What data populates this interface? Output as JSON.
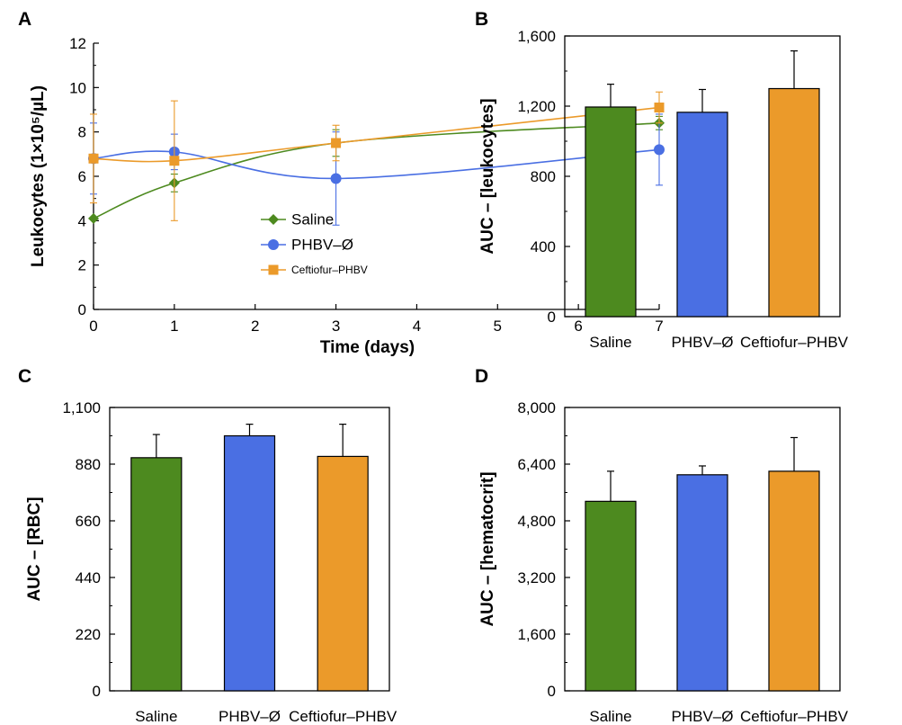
{
  "panels": [
    {
      "letter": "A"
    },
    {
      "letter": "B"
    },
    {
      "letter": "C"
    },
    {
      "letter": "D"
    }
  ],
  "chart_data": [
    {
      "panel": "A",
      "type": "line",
      "xlabel": "Time (days)",
      "ylabel": "Leukocytes (1×10⁵/µL)",
      "x": [
        0,
        1,
        3,
        7
      ],
      "xlim": [
        0,
        7
      ],
      "xticks": [
        "0",
        "1",
        "2",
        "3",
        "4",
        "5",
        "6",
        "7"
      ],
      "ylim": [
        0,
        12
      ],
      "yticks": [
        "0",
        "2",
        "4",
        "6",
        "8",
        "10",
        "12"
      ],
      "legend_position": "center-right",
      "series": [
        {
          "name": "Saline",
          "marker": "diamond",
          "color": "#4d8a1f",
          "values": [
            4.1,
            5.7,
            7.5,
            8.4
          ],
          "errors": [
            0.0,
            0.4,
            0.6,
            0.3
          ]
        },
        {
          "name": "PHBV–Ø",
          "marker": "circle",
          "color": "#4a6fe3",
          "values": [
            6.8,
            7.1,
            5.9,
            7.2
          ],
          "errors": [
            1.6,
            0.8,
            2.1,
            1.6
          ]
        },
        {
          "name": "Ceftiofur–PHBV",
          "marker": "square",
          "color": "#eb9a2a",
          "values": [
            6.8,
            6.7,
            7.5,
            9.1
          ],
          "errors": [
            2.0,
            2.7,
            0.8,
            0.7
          ]
        }
      ]
    },
    {
      "panel": "B",
      "type": "bar",
      "ylabel": "AUC – [leukocytes]",
      "categories": [
        "Saline",
        "PHBV–Ø",
        "Ceftiofur–PHBV"
      ],
      "colors": [
        "#4d8a1f",
        "#4a6fe3",
        "#eb9a2a"
      ],
      "values": [
        1195,
        1165,
        1300
      ],
      "errors": [
        130,
        130,
        215
      ],
      "ylim": [
        0,
        1600
      ],
      "yticks": [
        "0",
        "400",
        "800",
        "1,200",
        "1,600"
      ]
    },
    {
      "panel": "C",
      "type": "bar",
      "ylabel": "AUC – [RBC]",
      "categories": [
        "Saline",
        "PHBV–Ø",
        "Ceftiofur–PHBV"
      ],
      "colors": [
        "#4d8a1f",
        "#4a6fe3",
        "#eb9a2a"
      ],
      "values": [
        905,
        990,
        910
      ],
      "errors": [
        90,
        45,
        125
      ],
      "ylim": [
        0,
        1100
      ],
      "yticks": [
        "0",
        "220",
        "440",
        "660",
        "880",
        "1,100"
      ]
    },
    {
      "panel": "D",
      "type": "bar",
      "ylabel": "AUC – [hematocrit]",
      "categories": [
        "Saline",
        "PHBV–Ø",
        "Ceftiofur–PHBV"
      ],
      "colors": [
        "#4d8a1f",
        "#4a6fe3",
        "#eb9a2a"
      ],
      "values": [
        5350,
        6100,
        6200
      ],
      "errors": [
        850,
        250,
        950
      ],
      "ylim": [
        0,
        8000
      ],
      "yticks": [
        "0",
        "1,600",
        "3,200",
        "4,800",
        "6,400",
        "8,000"
      ]
    }
  ]
}
